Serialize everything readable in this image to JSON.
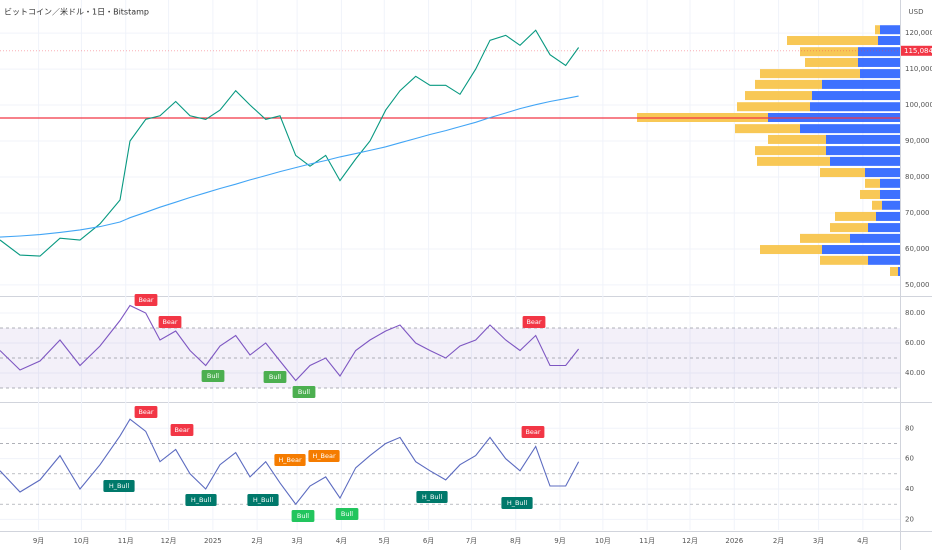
{
  "chart_data": [
    {
      "type": "line",
      "title": "ビットコイン／米ドル・1日・Bitstamp",
      "unit": "USD",
      "x": [
        -27,
        -13,
        1,
        15,
        29,
        43,
        57,
        64,
        75,
        85,
        96,
        106,
        117,
        127,
        138,
        148,
        159,
        169,
        180,
        190,
        201,
        211,
        222,
        232,
        243,
        253,
        264,
        274,
        285,
        295,
        306,
        316,
        327,
        337,
        348,
        358,
        369,
        378
      ],
      "xlim": [
        -27,
        603
      ],
      "xticks": [
        {
          "value": 0,
          "label": "9月"
        },
        {
          "value": 30,
          "label": "10月"
        },
        {
          "value": 61,
          "label": "11月"
        },
        {
          "value": 91,
          "label": "12月"
        },
        {
          "value": 122,
          "label": "2025"
        },
        {
          "value": 153,
          "label": "2月"
        },
        {
          "value": 181,
          "label": "3月"
        },
        {
          "value": 212,
          "label": "4月"
        },
        {
          "value": 242,
          "label": "5月"
        },
        {
          "value": 273,
          "label": "6月"
        },
        {
          "value": 303,
          "label": "7月"
        },
        {
          "value": 334,
          "label": "8月"
        },
        {
          "value": 365,
          "label": "9月"
        },
        {
          "value": 395,
          "label": "10月"
        },
        {
          "value": 426,
          "label": "11月"
        },
        {
          "value": 456,
          "label": "12月"
        },
        {
          "value": 487,
          "label": "2026"
        },
        {
          "value": 518,
          "label": "2月"
        },
        {
          "value": 546,
          "label": "3月"
        },
        {
          "value": 577,
          "label": "4月"
        }
      ],
      "ylim": [
        47200,
        129200
      ],
      "yticks": [
        {
          "value": 50000,
          "label": "50,000"
        },
        {
          "value": 60000,
          "label": "60,000"
        },
        {
          "value": 70000,
          "label": "70,000"
        },
        {
          "value": 80000,
          "label": "80,000"
        },
        {
          "value": 90000,
          "label": "90,000"
        },
        {
          "value": 100000,
          "label": "100,000"
        },
        {
          "value": 110000,
          "label": "110,000"
        },
        {
          "value": 120000,
          "label": "120,000"
        }
      ],
      "series": [
        {
          "color": "#089981",
          "values": [
            62500,
            58300,
            58000,
            63000,
            62500,
            67000,
            73600,
            90000,
            96000,
            97000,
            101000,
            97000,
            96000,
            98600,
            104000,
            100000,
            96000,
            97000,
            86000,
            83000,
            86000,
            79000,
            85000,
            90000,
            98600,
            104000,
            108000,
            105500,
            105500,
            103000,
            110000,
            118000,
            119400,
            116600,
            120800,
            114000,
            111000,
            116000
          ]
        },
        {
          "color": "#42a5f5",
          "values": [
            63300,
            63600,
            64000,
            64600,
            65300,
            66200,
            67500,
            68700,
            70200,
            71600,
            73000,
            74300,
            75600,
            76800,
            78000,
            79200,
            80400,
            81500,
            82600,
            83600,
            84600,
            85600,
            86500,
            87400,
            88400,
            89500,
            90700,
            91800,
            92900,
            94000,
            95200,
            96500,
            97800,
            99000,
            100100,
            101000,
            101800,
            102500
          ]
        }
      ],
      "hlines": [
        {
          "value": 96400,
          "color": "#f23645"
        }
      ],
      "last_price": {
        "value": 115084,
        "label": "115,084",
        "color": "#f23645"
      },
      "profile": {
        "levels": [
          120800,
          117800,
          114700,
          111700,
          108600,
          105600,
          102500,
          99400,
          96400,
          93300,
          90300,
          87200,
          84200,
          81100,
          78100,
          75000,
          72000,
          68900,
          65800,
          62800,
          59700,
          56700,
          53600
        ],
        "series": [
          {
            "color": "#2962ff",
            "values": [
              20,
              22,
              42,
              42,
              40,
              78,
              88,
              90,
              132,
              100,
              74,
              74,
              70,
              35,
              20,
              20,
              18,
              24,
              32,
              50,
              78,
              32,
              2
            ]
          },
          {
            "color": "#f7c244",
            "values": [
              5,
              91,
              58,
              53,
              100,
              67,
              67,
              73,
              131,
              65,
              58,
              71,
              73,
              45,
              15,
              20,
              10,
              41,
              38,
              50,
              62,
              48,
              8
            ]
          }
        ]
      }
    },
    {
      "type": "line",
      "x": [
        -27,
        -13,
        1,
        15,
        29,
        43,
        57,
        64,
        75,
        85,
        96,
        106,
        117,
        127,
        138,
        148,
        159,
        169,
        180,
        190,
        201,
        211,
        222,
        232,
        243,
        253,
        264,
        274,
        285,
        295,
        306,
        316,
        327,
        337,
        348,
        358,
        369,
        378
      ],
      "xlim": [
        -27,
        603
      ],
      "ylim": [
        22,
        90
      ],
      "yticks": [
        {
          "value": 40,
          "label": "40.00"
        },
        {
          "value": 60,
          "label": "60.00"
        },
        {
          "value": 80,
          "label": "80.00"
        }
      ],
      "levels": [
        70,
        50,
        30
      ],
      "band": true,
      "series": [
        {
          "color": "#7e57c2",
          "values": [
            55,
            42,
            48,
            62,
            45,
            58,
            75,
            85,
            80,
            62,
            68,
            55,
            45,
            58,
            65,
            52,
            60,
            48,
            35,
            45,
            50,
            38,
            55,
            62,
            68,
            72,
            60,
            55,
            50,
            58,
            62,
            72,
            62,
            55,
            65,
            45,
            45,
            56
          ]
        }
      ],
      "annotations": [
        "Bear",
        "Bear",
        "Bull",
        "Bull",
        "Bull",
        "Bear"
      ]
    },
    {
      "type": "line",
      "x": [
        -27,
        -13,
        1,
        15,
        29,
        43,
        57,
        64,
        75,
        85,
        96,
        106,
        117,
        127,
        138,
        148,
        159,
        169,
        180,
        190,
        201,
        211,
        222,
        232,
        243,
        253,
        264,
        274,
        285,
        295,
        306,
        316,
        327,
        337,
        348,
        358,
        369,
        378
      ],
      "xlim": [
        -27,
        603
      ],
      "ylim": [
        13,
        96
      ],
      "yticks": [
        20,
        40,
        60,
        80
      ],
      "levels": [
        70,
        50,
        30
      ],
      "band": false,
      "series": [
        {
          "color": "#5c6bc0",
          "values": [
            52,
            38,
            46,
            62,
            40,
            56,
            75,
            86,
            78,
            58,
            66,
            50,
            40,
            56,
            64,
            48,
            58,
            44,
            30,
            42,
            48,
            34,
            54,
            62,
            70,
            74,
            58,
            52,
            46,
            56,
            62,
            74,
            60,
            52,
            68,
            42,
            42,
            58
          ]
        }
      ],
      "annotations": [
        "Bear",
        "Bear",
        "H_Bull",
        "H_Bull",
        "H_Bull",
        "H_Bear",
        "H_Bear",
        "Bull",
        "Bull",
        "H_Bull",
        "H_Bull",
        "Bear"
      ]
    }
  ]
}
